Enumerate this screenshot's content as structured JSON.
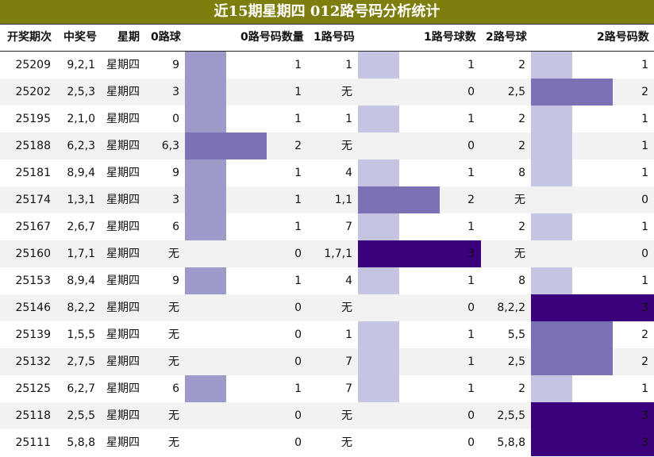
{
  "chart_data": {
    "type": "table",
    "title": "近15期星期四 012路号码分析统计",
    "columns": [
      "开奖期次",
      "中奖号",
      "星期",
      "0路球",
      "0路号码数量",
      "1路号码",
      "1路号球数",
      "2路号球",
      "2路号码数"
    ],
    "rows": [
      {
        "period": "25209",
        "numbers": "9,2,1",
        "weekday": "星期四",
        "r0": "9",
        "c0": 1,
        "r1": "1",
        "c1": 1,
        "r2": "2",
        "c2": 1
      },
      {
        "period": "25202",
        "numbers": "2,5,3",
        "weekday": "星期四",
        "r0": "3",
        "c0": 1,
        "r1": "无",
        "c1": 0,
        "r2": "2,5",
        "c2": 2
      },
      {
        "period": "25195",
        "numbers": "2,1,0",
        "weekday": "星期四",
        "r0": "0",
        "c0": 1,
        "r1": "1",
        "c1": 1,
        "r2": "2",
        "c2": 1
      },
      {
        "period": "25188",
        "numbers": "6,2,3",
        "weekday": "星期四",
        "r0": "6,3",
        "c0": 2,
        "r1": "无",
        "c1": 0,
        "r2": "2",
        "c2": 1
      },
      {
        "period": "25181",
        "numbers": "8,9,4",
        "weekday": "星期四",
        "r0": "9",
        "c0": 1,
        "r1": "4",
        "c1": 1,
        "r2": "8",
        "c2": 1
      },
      {
        "period": "25174",
        "numbers": "1,3,1",
        "weekday": "星期四",
        "r0": "3",
        "c0": 1,
        "r1": "1,1",
        "c1": 2,
        "r2": "无",
        "c2": 0
      },
      {
        "period": "25167",
        "numbers": "2,6,7",
        "weekday": "星期四",
        "r0": "6",
        "c0": 1,
        "r1": "7",
        "c1": 1,
        "r2": "2",
        "c2": 1
      },
      {
        "period": "25160",
        "numbers": "1,7,1",
        "weekday": "星期四",
        "r0": "无",
        "c0": 0,
        "r1": "1,7,1",
        "c1": 3,
        "r2": "无",
        "c2": 0
      },
      {
        "period": "25153",
        "numbers": "8,9,4",
        "weekday": "星期四",
        "r0": "9",
        "c0": 1,
        "r1": "4",
        "c1": 1,
        "r2": "8",
        "c2": 1
      },
      {
        "period": "25146",
        "numbers": "8,2,2",
        "weekday": "星期四",
        "r0": "无",
        "c0": 0,
        "r1": "无",
        "c1": 0,
        "r2": "8,2,2",
        "c2": 3
      },
      {
        "period": "25139",
        "numbers": "1,5,5",
        "weekday": "星期四",
        "r0": "无",
        "c0": 0,
        "r1": "1",
        "c1": 1,
        "r2": "5,5",
        "c2": 2
      },
      {
        "period": "25132",
        "numbers": "2,7,5",
        "weekday": "星期四",
        "r0": "无",
        "c0": 0,
        "r1": "7",
        "c1": 1,
        "r2": "2,5",
        "c2": 2
      },
      {
        "period": "25125",
        "numbers": "6,2,7",
        "weekday": "星期四",
        "r0": "6",
        "c0": 1,
        "r1": "7",
        "c1": 1,
        "r2": "2",
        "c2": 1
      },
      {
        "period": "25118",
        "numbers": "2,5,5",
        "weekday": "星期四",
        "r0": "无",
        "c0": 0,
        "r1": "无",
        "c1": 0,
        "r2": "2,5,5",
        "c2": 3
      },
      {
        "period": "25111",
        "numbers": "5,8,8",
        "weekday": "星期四",
        "r0": "无",
        "c0": 0,
        "r1": "无",
        "c1": 0,
        "r2": "5,8,8",
        "c2": 3
      }
    ],
    "bar_scale_max": 3,
    "colors": {
      "header_background": "#7e7e0f",
      "header_text": "#ffffff",
      "col0_bar": "#9c9ac8",
      "col1_bar": "#c5c5e3",
      "col2_bar": "#c5c5e3",
      "bar_level_2": "#7b71b5",
      "bar_level_3": "#3b007b"
    }
  }
}
